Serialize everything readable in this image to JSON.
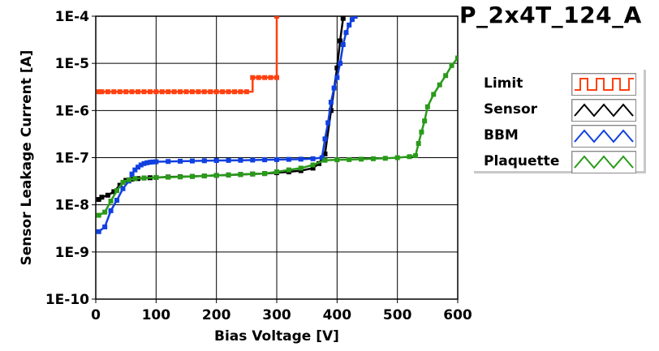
{
  "chart_data": {
    "type": "line",
    "title": "P_2x4T_124_A",
    "xlabel": "Bias Voltage [V]",
    "ylabel": "Sensor Leakage Current [A]",
    "xlim": [
      0,
      600
    ],
    "ylim": [
      1e-10,
      0.0001
    ],
    "yscale": "log",
    "grid": true,
    "legend_position": "right",
    "x_ticks": [
      "0",
      "100",
      "200",
      "300",
      "400",
      "500",
      "600"
    ],
    "y_ticks": [
      "1E-10",
      "1E-9",
      "1E-8",
      "1E-7",
      "1E-6",
      "1E-5",
      "1E-4"
    ],
    "series": [
      {
        "name": "Limit",
        "color": "#ff4010",
        "style": "step",
        "x": [
          5,
          10,
          20,
          30,
          40,
          50,
          60,
          70,
          80,
          90,
          100,
          110,
          120,
          130,
          140,
          150,
          160,
          170,
          180,
          190,
          200,
          210,
          220,
          230,
          240,
          250,
          260,
          270,
          280,
          290,
          300,
          300
        ],
        "y": [
          2.5e-06,
          2.5e-06,
          2.5e-06,
          2.5e-06,
          2.5e-06,
          2.5e-06,
          2.5e-06,
          2.5e-06,
          2.5e-06,
          2.5e-06,
          2.5e-06,
          2.5e-06,
          2.5e-06,
          2.5e-06,
          2.5e-06,
          2.5e-06,
          2.5e-06,
          2.5e-06,
          2.5e-06,
          2.5e-06,
          2.5e-06,
          2.5e-06,
          2.5e-06,
          2.5e-06,
          2.5e-06,
          2.5e-06,
          5e-06,
          5e-06,
          5e-06,
          5e-06,
          5e-06,
          0.0001
        ]
      },
      {
        "name": "Sensor",
        "color": "#000000",
        "style": "line",
        "x": [
          5,
          10,
          20,
          30,
          40,
          50,
          60,
          70,
          80,
          90,
          100,
          120,
          140,
          160,
          180,
          200,
          220,
          240,
          260,
          280,
          300,
          320,
          340,
          360,
          370,
          380,
          390,
          400,
          405,
          410
        ],
        "y": [
          1.3e-08,
          1.45e-08,
          1.6e-08,
          1.9e-08,
          2.6e-08,
          3.3e-08,
          3.5e-08,
          3.6e-08,
          3.7e-08,
          3.75e-08,
          3.8e-08,
          3.9e-08,
          3.95e-08,
          4e-08,
          4.1e-08,
          4.2e-08,
          4.3e-08,
          4.4e-08,
          4.5e-08,
          4.6e-08,
          4.8e-08,
          5e-08,
          5.3e-08,
          6e-08,
          7.5e-08,
          1.2e-07,
          1e-06,
          8e-06,
          3e-05,
          9e-05
        ]
      },
      {
        "name": "BBM",
        "color": "#1040e0",
        "style": "line",
        "x": [
          5,
          15,
          25,
          35,
          45,
          55,
          60,
          65,
          70,
          75,
          80,
          85,
          90,
          95,
          100,
          120,
          140,
          160,
          180,
          200,
          220,
          240,
          260,
          280,
          300,
          320,
          340,
          360,
          375,
          380,
          385,
          390,
          395,
          400,
          405,
          410,
          415,
          420,
          425,
          430
        ],
        "y": [
          2.7e-09,
          3.4e-09,
          7.5e-09,
          1.25e-08,
          2.2e-08,
          3.2e-08,
          4.5e-08,
          5.5e-08,
          6.3e-08,
          7e-08,
          7.5e-08,
          7.8e-08,
          8e-08,
          8.1e-08,
          8.2e-08,
          8.3e-08,
          8.4e-08,
          8.5e-08,
          8.6e-08,
          8.7e-08,
          8.75e-08,
          8.8e-08,
          8.9e-08,
          9e-08,
          9.1e-08,
          9.2e-08,
          9.3e-08,
          9.5e-08,
          1e-07,
          2.5e-07,
          5.5e-07,
          1.5e-06,
          3e-06,
          5e-06,
          1e-05,
          2.5e-05,
          4.5e-05,
          6.5e-05,
          8.5e-05,
          0.0001
        ]
      },
      {
        "name": "Plaquette",
        "color": "#2a9a1a",
        "style": "line",
        "x": [
          5,
          15,
          25,
          35,
          45,
          55,
          65,
          80,
          100,
          120,
          140,
          160,
          180,
          200,
          220,
          240,
          260,
          280,
          300,
          320,
          340,
          360,
          380,
          400,
          420,
          440,
          460,
          480,
          500,
          520,
          530,
          535,
          540,
          545,
          550,
          560,
          570,
          580,
          590,
          600
        ],
        "y": [
          6e-09,
          7e-09,
          1.2e-08,
          2e-08,
          3e-08,
          3.4e-08,
          3.6e-08,
          3.7e-08,
          3.8e-08,
          3.85e-08,
          3.9e-08,
          4e-08,
          4.1e-08,
          4.2e-08,
          4.3e-08,
          4.4e-08,
          4.5e-08,
          4.6e-08,
          5e-08,
          5.5e-08,
          6e-08,
          7e-08,
          8.8e-08,
          9e-08,
          9.1e-08,
          9.3e-08,
          9.5e-08,
          9.7e-08,
          1e-07,
          1.05e-07,
          1.1e-07,
          2e-07,
          3.5e-07,
          6e-07,
          1.2e-06,
          2.2e-06,
          3.5e-06,
          5.5e-06,
          9e-06,
          1.3e-05
        ]
      }
    ]
  }
}
